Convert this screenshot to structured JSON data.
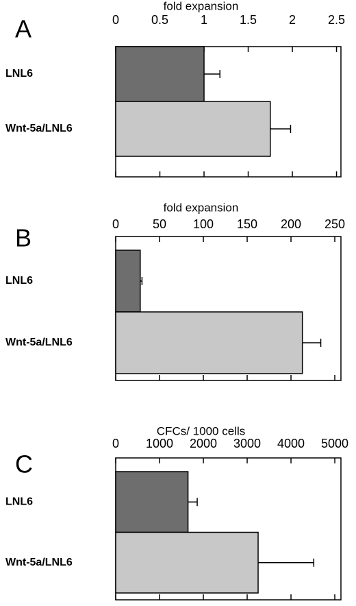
{
  "chart_data": [
    {
      "type": "bar",
      "panel": "A",
      "title": "fold expansion",
      "categories": [
        "LNL6",
        "Wnt-5a/LNL6"
      ],
      "values": [
        1.0,
        1.75
      ],
      "errors": [
        0.18,
        0.23
      ],
      "colors": [
        "#6e6e6e",
        "#c8c8c8"
      ],
      "xlim": [
        0,
        2.55
      ],
      "xticks": [
        0,
        0.5,
        1,
        1.5,
        2,
        2.5
      ]
    },
    {
      "type": "bar",
      "panel": "B",
      "title": "fold expansion",
      "categories": [
        "LNL6",
        "Wnt-5a/LNL6"
      ],
      "values": [
        28,
        213
      ],
      "errors": [
        2,
        21
      ],
      "colors": [
        "#6e6e6e",
        "#c8c8c8"
      ],
      "xlim": [
        0,
        257
      ],
      "xticks": [
        0,
        50,
        100,
        150,
        200,
        250
      ]
    },
    {
      "type": "bar",
      "panel": "C",
      "title": "CFCs/ 1000 cells",
      "categories": [
        "LNL6",
        "Wnt-5a/LNL6"
      ],
      "values": [
        1650,
        3250
      ],
      "errors": [
        210,
        1270
      ],
      "colors": [
        "#6e6e6e",
        "#c8c8c8"
      ],
      "xlim": [
        0,
        5140
      ],
      "xticks": [
        0,
        1000,
        2000,
        3000,
        4000,
        5000
      ]
    }
  ]
}
